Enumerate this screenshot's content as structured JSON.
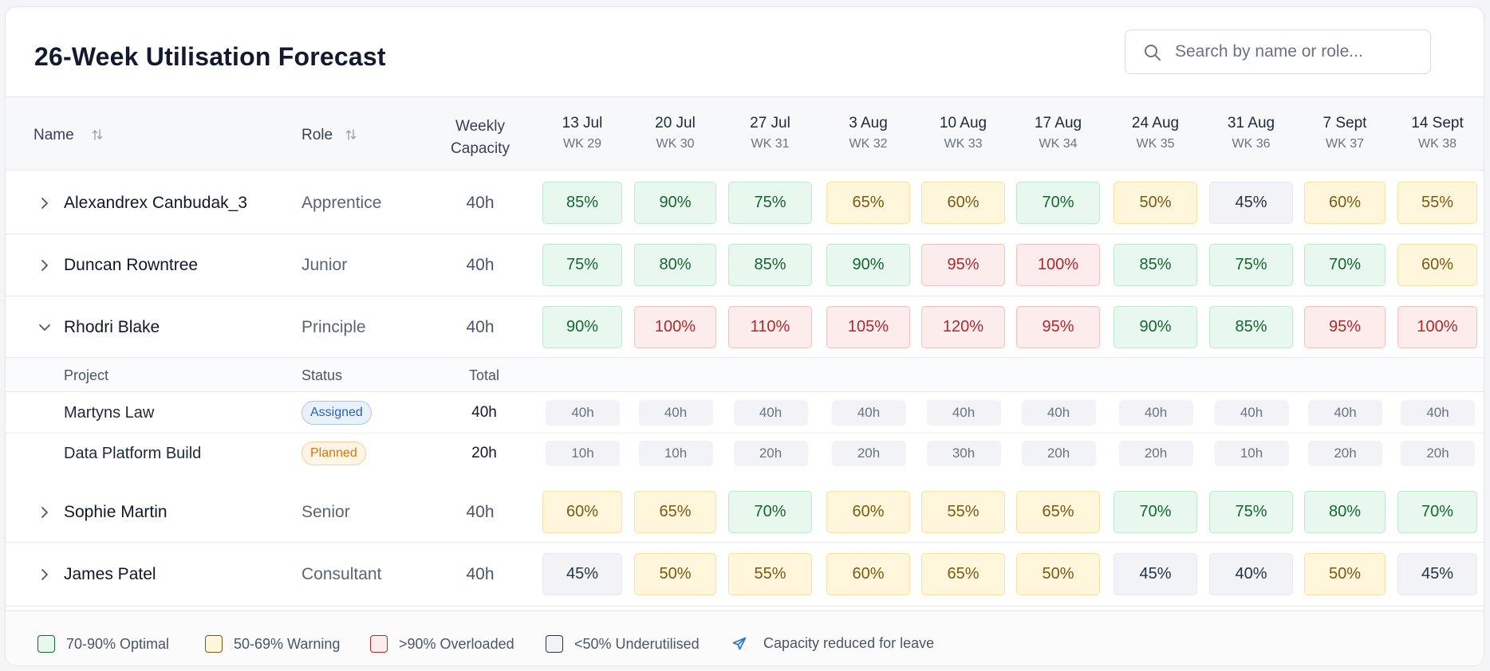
{
  "title": "26-Week Utilisation Forecast",
  "search": {
    "placeholder": "Search by name or role..."
  },
  "columns": {
    "name": "Name",
    "role": "Role",
    "capacity_line1": "Weekly",
    "capacity_line2": "Capacity"
  },
  "weeks": [
    {
      "date": "13 Jul",
      "wk": "WK 29"
    },
    {
      "date": "20 Jul",
      "wk": "WK 30"
    },
    {
      "date": "27 Jul",
      "wk": "WK 31"
    },
    {
      "date": "3 Aug",
      "wk": "WK 32"
    },
    {
      "date": "10 Aug",
      "wk": "WK 33"
    },
    {
      "date": "17 Aug",
      "wk": "WK 34"
    },
    {
      "date": "24 Aug",
      "wk": "WK 35"
    },
    {
      "date": "31 Aug",
      "wk": "WK 36"
    },
    {
      "date": "7 Sept",
      "wk": "WK 37"
    },
    {
      "date": "14 Sept",
      "wk": "WK 38"
    }
  ],
  "people": [
    {
      "name": "Alexandrex Canbudak_3",
      "role": "Apprentice",
      "capacity": "40h",
      "expanded": false,
      "util": [
        "85%",
        "90%",
        "75%",
        "65%",
        "60%",
        "70%",
        "50%",
        "45%",
        "60%",
        "55%"
      ],
      "status": [
        "optimal",
        "optimal",
        "optimal",
        "warning",
        "warning",
        "optimal",
        "warning",
        "under",
        "warning",
        "warning"
      ]
    },
    {
      "name": "Duncan Rowntree",
      "role": "Junior",
      "capacity": "40h",
      "expanded": false,
      "util": [
        "75%",
        "80%",
        "85%",
        "90%",
        "95%",
        "100%",
        "85%",
        "75%",
        "70%",
        "60%"
      ],
      "status": [
        "optimal",
        "optimal",
        "optimal",
        "optimal",
        "overloaded",
        "overloaded",
        "optimal",
        "optimal",
        "optimal",
        "warning"
      ]
    },
    {
      "name": "Rhodri Blake",
      "role": "Principle",
      "capacity": "40h",
      "expanded": true,
      "util": [
        "90%",
        "100%",
        "110%",
        "105%",
        "120%",
        "95%",
        "90%",
        "85%",
        "95%",
        "100%"
      ],
      "status": [
        "optimal",
        "overloaded",
        "overloaded",
        "overloaded",
        "overloaded",
        "overloaded",
        "optimal",
        "optimal",
        "overloaded",
        "overloaded"
      ]
    },
    {
      "name": "Sophie Martin",
      "role": "Senior",
      "capacity": "40h",
      "expanded": false,
      "util": [
        "60%",
        "65%",
        "70%",
        "60%",
        "55%",
        "65%",
        "70%",
        "75%",
        "80%",
        "70%"
      ],
      "status": [
        "warning",
        "warning",
        "optimal",
        "warning",
        "warning",
        "warning",
        "optimal",
        "optimal",
        "optimal",
        "optimal"
      ]
    },
    {
      "name": "James Patel",
      "role": "Consultant",
      "capacity": "40h",
      "expanded": false,
      "util": [
        "45%",
        "50%",
        "55%",
        "60%",
        "65%",
        "50%",
        "45%",
        "40%",
        "50%",
        "45%"
      ],
      "status": [
        "under",
        "warning",
        "warning",
        "warning",
        "warning",
        "warning",
        "under",
        "under",
        "warning",
        "under"
      ]
    }
  ],
  "project_columns": {
    "project": "Project",
    "status": "Status",
    "total": "Total"
  },
  "projects": [
    {
      "name": "Martyns Law",
      "status": "Assigned",
      "status_type": "assigned",
      "total": "40h",
      "hours": [
        "40h",
        "40h",
        "40h",
        "40h",
        "40h",
        "40h",
        "40h",
        "40h",
        "40h",
        "40h"
      ]
    },
    {
      "name": "Data Platform Build",
      "status": "Planned",
      "status_type": "planned",
      "total": "20h",
      "hours": [
        "10h",
        "10h",
        "20h",
        "20h",
        "30h",
        "20h",
        "20h",
        "10h",
        "20h",
        "20h"
      ]
    }
  ],
  "legend": [
    {
      "label": "70-90% Optimal",
      "type": "optimal"
    },
    {
      "label": "50-69% Warning",
      "type": "warning"
    },
    {
      "label": ">90% Overloaded",
      "type": "overloaded"
    },
    {
      "label": "<50% Underutilised",
      "type": "under"
    },
    {
      "label": "Capacity reduced for leave",
      "type": "leave",
      "icon": "plane-icon"
    }
  ],
  "colors": {
    "optimal": "#e8f8ee",
    "warning": "#fff6dc",
    "overloaded": "#fdecec",
    "under": "#f1f3f6",
    "accent_blue": "#2563c9",
    "planned_orange": "#d9730d"
  }
}
